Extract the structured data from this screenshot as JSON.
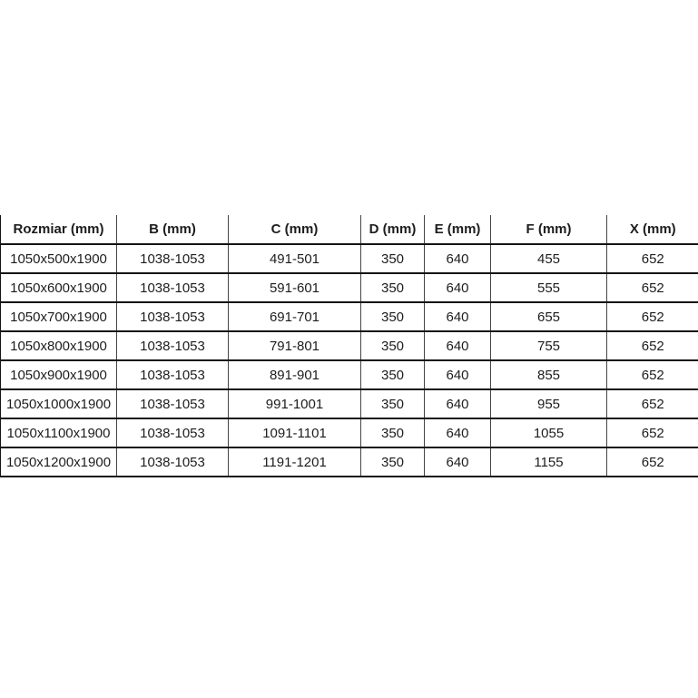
{
  "colors": {
    "background": "#ffffff",
    "text": "#1d1d1d",
    "border_horizontal": "#141414",
    "border_vertical": "#454545"
  },
  "chart_data": {
    "type": "table",
    "title": "",
    "columns": [
      "Rozmiar (mm)",
      "B (mm)",
      "C (mm)",
      "D (mm)",
      "E (mm)",
      "F (mm)",
      "X (mm)"
    ],
    "rows": [
      [
        "1050x500x1900",
        "1038-1053",
        "491-501",
        "350",
        "640",
        "455",
        "652"
      ],
      [
        "1050x600x1900",
        "1038-1053",
        "591-601",
        "350",
        "640",
        "555",
        "652"
      ],
      [
        "1050x700x1900",
        "1038-1053",
        "691-701",
        "350",
        "640",
        "655",
        "652"
      ],
      [
        "1050x800x1900",
        "1038-1053",
        "791-801",
        "350",
        "640",
        "755",
        "652"
      ],
      [
        "1050x900x1900",
        "1038-1053",
        "891-901",
        "350",
        "640",
        "855",
        "652"
      ],
      [
        "1050x1000x1900",
        "1038-1053",
        "991-1001",
        "350",
        "640",
        "955",
        "652"
      ],
      [
        "1050x1100x1900",
        "1038-1053",
        "1091-1101",
        "350",
        "640",
        "1055",
        "652"
      ],
      [
        "1050x1200x1900",
        "1038-1053",
        "1191-1201",
        "350",
        "640",
        "1155",
        "652"
      ]
    ]
  }
}
